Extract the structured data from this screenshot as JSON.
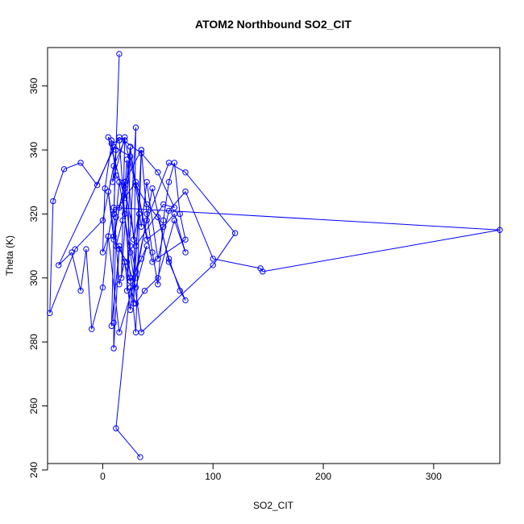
{
  "chart_data": {
    "type": "line",
    "title": "ATOM2 Northbound SO2_CIT",
    "xlabel": "SO2_CIT",
    "ylabel": "Theta (K)",
    "xlim": [
      -50,
      360
    ],
    "ylim": [
      242,
      372
    ],
    "xticks": [
      0,
      100,
      200,
      300
    ],
    "yticks": [
      240,
      260,
      280,
      300,
      320,
      340,
      360
    ],
    "grid": false,
    "legend": "none",
    "markers": "open-circle",
    "color": "#0000ff",
    "series": [
      {
        "x": [
          15,
          10,
          12,
          9,
          20,
          17,
          25,
          22,
          30,
          28,
          35,
          40,
          45,
          50,
          55,
          60,
          65,
          70,
          75,
          45,
          25,
          10,
          -5,
          -20,
          -35,
          -45,
          -48,
          -25,
          0,
          10,
          20,
          30,
          40,
          50,
          60,
          70,
          75,
          60,
          45,
          30,
          15,
          5,
          0,
          -10,
          -15,
          -20,
          -28,
          -40,
          15,
          35,
          50,
          65,
          55,
          30,
          20,
          12,
          8,
          5,
          20,
          25,
          35,
          40,
          50,
          60,
          75,
          100,
          143,
          145,
          360,
          10,
          5,
          0,
          2,
          8,
          15,
          20,
          25,
          30,
          35,
          20,
          10,
          8,
          15,
          22,
          30,
          40,
          35,
          25,
          15,
          10,
          10,
          12,
          15,
          25,
          35,
          100,
          120,
          75,
          60,
          40,
          30,
          25,
          20,
          15,
          10,
          5,
          12,
          18,
          22,
          28,
          33,
          25,
          20,
          15,
          10,
          30,
          40,
          55,
          65,
          75,
          65,
          50,
          38,
          30,
          25,
          12,
          34
        ],
        "y": [
          370,
          320,
          340,
          330,
          344,
          300,
          341,
          296,
          347,
          292,
          340,
          320,
          308,
          298,
          318,
          330,
          336,
          320,
          312,
          305,
          338,
          341,
          329,
          336,
          334,
          324,
          289,
          309,
          318,
          335,
          343,
          329,
          323,
          319,
          306,
          296,
          293,
          305,
          328,
          300,
          283,
          313,
          297,
          284,
          309,
          296,
          308,
          304,
          344,
          339,
          333,
          322,
          323,
          310,
          328,
          332,
          343,
          344,
          325,
          341,
          316,
          330,
          306,
          321,
          327,
          306,
          303,
          302,
          315,
          322,
          313,
          308,
          328,
          342,
          343,
          320,
          300,
          283,
          340,
          330,
          313,
          285,
          309,
          305,
          297,
          310,
          306,
          299,
          310,
          278,
          286,
          319,
          330,
          308,
          283,
          304,
          314,
          333,
          336,
          318,
          302,
          310,
          330,
          322,
          312,
          327,
          310,
          318,
          337,
          312,
          320,
          290,
          305,
          298,
          320,
          330,
          312,
          316,
          320,
          308,
          318,
          300,
          296,
          292,
          297,
          253,
          244
        ]
      }
    ]
  }
}
